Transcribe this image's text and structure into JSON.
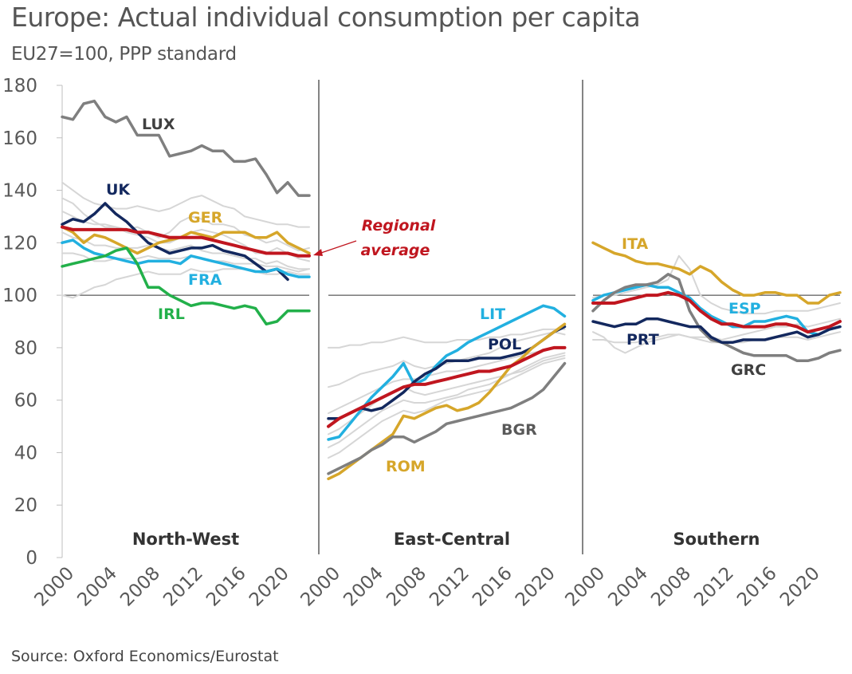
{
  "title": "Europe: Actual individual consumption per capita",
  "subtitle": "EU27=100, PPP standard",
  "source": "Source: Oxford Economics/Eurostat",
  "annotation": {
    "line1": "Regional",
    "line2": "average"
  },
  "chart_data": {
    "type": "line",
    "y_range": [
      0,
      180
    ],
    "y_ticks": [
      "0",
      "20",
      "40",
      "60",
      "80",
      "100",
      "120",
      "140",
      "160",
      "180"
    ],
    "x_range": [
      2000,
      2023
    ],
    "x_ticks": [
      "2000",
      "2004",
      "2008",
      "2012",
      "2016",
      "2020"
    ],
    "reference_line": 100,
    "colors": {
      "background_series": "#d6d6d6",
      "regional_average": "#c0161f",
      "reference": "#333333"
    },
    "panels": [
      {
        "name": "North-West",
        "series": [
          {
            "name": "LUX",
            "color": "#7f7f7f",
            "label_color": "#404040",
            "highlight": true,
            "values": [
              168,
              167,
              173,
              174,
              168,
              166,
              168,
              161,
              161,
              161,
              153,
              154,
              155,
              157,
              155,
              155,
              151,
              151,
              152,
              146,
              139,
              143,
              138,
              138
            ]
          },
          {
            "name": "UK",
            "color": "#13285e",
            "label_color": "#13285e",
            "highlight": true,
            "values": [
              127,
              129,
              128,
              131,
              135,
              131,
              128,
              124,
              120,
              118,
              116,
              117,
              118,
              118,
              119,
              117,
              116,
              115,
              112,
              109,
              110,
              106,
              null,
              null
            ]
          },
          {
            "name": "GER",
            "color": "#d6a62a",
            "label_color": "#d6a62a",
            "highlight": true,
            "values": [
              126,
              124,
              120,
              123,
              122,
              120,
              118,
              116,
              118,
              120,
              121,
              122,
              124,
              123,
              122,
              124,
              124,
              124,
              122,
              122,
              124,
              120,
              118,
              116
            ]
          },
          {
            "name": "FRA",
            "color": "#22b0e0",
            "label_color": "#22b0e0",
            "highlight": true,
            "values": [
              120,
              121,
              118,
              116,
              115,
              114,
              113,
              112,
              113,
              113,
              113,
              112,
              115,
              114,
              113,
              112,
              111,
              110,
              109,
              109,
              110,
              108,
              107,
              107
            ]
          },
          {
            "name": "IRL",
            "color": "#22b04a",
            "label_color": "#22b04a",
            "highlight": true,
            "values": [
              111,
              112,
              113,
              114,
              115,
              117,
              118,
              112,
              103,
              103,
              100,
              98,
              96,
              97,
              97,
              96,
              95,
              96,
              95,
              89,
              90,
              94,
              94,
              94
            ]
          },
          {
            "name": "Regional average",
            "color": "#c0161f",
            "highlight": true,
            "average": true,
            "values": [
              126,
              125,
              125,
              125,
              125,
              125,
              125,
              124,
              124,
              123,
              122,
              122,
              122,
              122,
              121,
              120,
              119,
              118,
              117,
              116,
              116,
              116,
              115,
              115
            ]
          },
          {
            "name": "",
            "color": "#d6d6d6",
            "values": [
              143,
              140,
              137,
              135,
              134,
              133,
              133,
              134,
              133,
              132,
              133,
              135,
              137,
              138,
              136,
              134,
              133,
              130,
              129,
              128,
              127,
              127,
              126,
              126
            ]
          },
          {
            "name": "",
            "color": "#d6d6d6",
            "values": [
              137,
              135,
              131,
              128,
              126,
              126,
              125,
              126,
              124,
              122,
              124,
              128,
              130,
              129,
              127,
              127,
              126,
              123,
              122,
              120,
              121,
              119,
              117,
              118
            ]
          },
          {
            "name": "",
            "color": "#d6d6d6",
            "values": [
              132,
              130,
              128,
              127,
              127,
              126,
              124,
              123,
              122,
              120,
              120,
              122,
              124,
              125,
              124,
              123,
              121,
              119,
              116,
              116,
              118,
              116,
              114,
              113
            ]
          },
          {
            "name": "",
            "color": "#d6d6d6",
            "values": [
              124,
              122,
              121,
              119,
              119,
              118,
              118,
              118,
              119,
              118,
              117,
              118,
              119,
              117,
              116,
              116,
              115,
              114,
              114,
              112,
              113,
              111,
              110,
              110
            ]
          },
          {
            "name": "",
            "color": "#d6d6d6",
            "values": [
              116,
              116,
              115,
              113,
              113,
              114,
              114,
              114,
              115,
              114,
              114,
              114,
              115,
              114,
              113,
              113,
              112,
              112,
              112,
              111,
              111,
              110,
              109,
              110
            ]
          },
          {
            "name": "",
            "color": "#d6d6d6",
            "values": [
              100,
              99,
              101,
              103,
              104,
              106,
              107,
              108,
              109,
              108,
              108,
              108,
              110,
              109,
              109,
              110,
              110,
              110,
              109,
              108,
              108,
              109,
              108,
              108
            ]
          }
        ]
      },
      {
        "name": "East-Central",
        "series": [
          {
            "name": "LIT",
            "color": "#22b0e0",
            "label_color": "#22b0e0",
            "highlight": true,
            "values": [
              45,
              46,
              51,
              56,
              61,
              65,
              69,
              74,
              66,
              68,
              73,
              77,
              79,
              82,
              84,
              86,
              88,
              90,
              92,
              94,
              96,
              95,
              92,
              null
            ]
          },
          {
            "name": "POL",
            "color": "#13285e",
            "label_color": "#13285e",
            "highlight": true,
            "values": [
              53,
              53,
              55,
              57,
              56,
              57,
              60,
              63,
              67,
              70,
              72,
              75,
              75,
              75,
              76,
              76,
              76,
              77,
              78,
              80,
              83,
              86,
              88,
              null
            ]
          },
          {
            "name": "ROM",
            "color": "#d6a62a",
            "label_color": "#d6a62a",
            "highlight": true,
            "values": [
              30,
              32,
              35,
              38,
              41,
              44,
              47,
              54,
              53,
              55,
              57,
              58,
              56,
              57,
              59,
              63,
              68,
              73,
              76,
              80,
              83,
              86,
              89,
              null
            ]
          },
          {
            "name": "BGR",
            "color": "#7f7f7f",
            "label_color": "#595959",
            "highlight": true,
            "values": [
              32,
              34,
              36,
              38,
              41,
              43,
              46,
              46,
              44,
              46,
              48,
              51,
              52,
              53,
              54,
              55,
              56,
              57,
              59,
              61,
              64,
              69,
              74,
              null
            ]
          },
          {
            "name": "Regional average",
            "color": "#c0161f",
            "highlight": true,
            "average": true,
            "values": [
              50,
              53,
              55,
              57,
              59,
              61,
              63,
              65,
              66,
              66,
              67,
              68,
              69,
              70,
              71,
              71,
              72,
              73,
              75,
              77,
              79,
              80,
              80,
              null
            ]
          },
          {
            "name": "",
            "color": "#d6d6d6",
            "values": [
              80,
              80,
              81,
              81,
              82,
              82,
              83,
              84,
              83,
              82,
              82,
              82,
              83,
              83,
              83,
              84,
              84,
              85,
              85,
              86,
              87,
              87,
              87,
              null
            ]
          },
          {
            "name": "",
            "color": "#d6d6d6",
            "values": [
              65,
              66,
              68,
              70,
              71,
              72,
              73,
              75,
              73,
              72,
              73,
              74,
              75,
              76,
              77,
              78,
              80,
              82,
              83,
              84,
              85,
              86,
              85,
              null
            ]
          },
          {
            "name": "",
            "color": "#d6d6d6",
            "values": [
              55,
              57,
              59,
              61,
              63,
              65,
              67,
              68,
              68,
              69,
              70,
              71,
              71,
              72,
              73,
              74,
              75,
              76,
              77,
              78,
              79,
              80,
              80,
              null
            ]
          },
          {
            "name": "",
            "color": "#d6d6d6",
            "values": [
              47,
              49,
              52,
              55,
              58,
              61,
              63,
              65,
              63,
              62,
              63,
              64,
              65,
              66,
              67,
              68,
              69,
              70,
              72,
              74,
              76,
              77,
              78,
              null
            ]
          },
          {
            "name": "",
            "color": "#d6d6d6",
            "values": [
              42,
              44,
              47,
              50,
              53,
              56,
              58,
              60,
              59,
              59,
              60,
              61,
              62,
              64,
              65,
              66,
              68,
              70,
              71,
              73,
              75,
              76,
              77,
              null
            ]
          },
          {
            "name": "",
            "color": "#d6d6d6",
            "values": [
              38,
              40,
              43,
              46,
              49,
              52,
              54,
              56,
              55,
              56,
              58,
              60,
              61,
              62,
              63,
              64,
              66,
              68,
              70,
              72,
              74,
              75,
              76,
              null
            ]
          }
        ]
      },
      {
        "name": "Southern",
        "series": [
          {
            "name": "ITA",
            "color": "#d6a62a",
            "label_color": "#d6a62a",
            "highlight": true,
            "values": [
              120,
              118,
              116,
              115,
              113,
              112,
              112,
              111,
              110,
              108,
              111,
              109,
              105,
              102,
              100,
              100,
              101,
              101,
              100,
              100,
              97,
              97,
              100,
              101
            ]
          },
          {
            "name": "ESP",
            "color": "#22b0e0",
            "label_color": "#22b0e0",
            "highlight": true,
            "values": [
              98,
              100,
              101,
              102,
              103,
              104,
              103,
              103,
              101,
              99,
              95,
              92,
              90,
              88,
              88,
              90,
              90,
              91,
              92,
              91,
              86,
              85,
              87,
              88
            ]
          },
          {
            "name": "GRC",
            "color": "#7f7f7f",
            "label_color": "#404040",
            "highlight": true,
            "values": [
              94,
              98,
              101,
              103,
              104,
              104,
              105,
              108,
              106,
              94,
              87,
              83,
              82,
              80,
              78,
              77,
              77,
              77,
              77,
              75,
              75,
              76,
              78,
              79
            ]
          },
          {
            "name": "PRT",
            "color": "#13285e",
            "label_color": "#13285e",
            "highlight": true,
            "values": [
              90,
              89,
              88,
              89,
              89,
              91,
              91,
              90,
              89,
              88,
              88,
              84,
              82,
              82,
              83,
              83,
              83,
              84,
              85,
              86,
              84,
              85,
              87,
              88
            ]
          },
          {
            "name": "Regional average",
            "color": "#c0161f",
            "highlight": true,
            "average": true,
            "values": [
              97,
              97,
              97,
              98,
              99,
              100,
              100,
              101,
              100,
              98,
              94,
              91,
              89,
              89,
              88,
              88,
              88,
              89,
              89,
              88,
              86,
              87,
              88,
              90
            ]
          },
          {
            "name": "",
            "color": "#d6d6d6",
            "values": [
              99,
              100,
              100,
              101,
              102,
              103,
              104,
              106,
              115,
              110,
              100,
              97,
              95,
              94,
              93,
              93,
              93,
              94,
              94,
              94,
              94,
              95,
              96,
              97
            ]
          },
          {
            "name": "",
            "color": "#d6d6d6",
            "values": [
              86,
              84,
              80,
              78,
              80,
              82,
              83,
              84,
              85,
              84,
              83,
              82,
              82,
              82,
              82,
              83,
              83,
              84,
              84,
              84,
              83,
              84,
              85,
              86
            ]
          },
          {
            "name": "",
            "color": "#d6d6d6",
            "values": [
              83,
              83,
              82,
              82,
              82,
              83,
              84,
              85,
              85,
              84,
              84,
              84,
              83,
              84,
              85,
              86,
              87,
              88,
              88,
              89,
              88,
              89,
              90,
              91
            ]
          }
        ]
      }
    ]
  }
}
